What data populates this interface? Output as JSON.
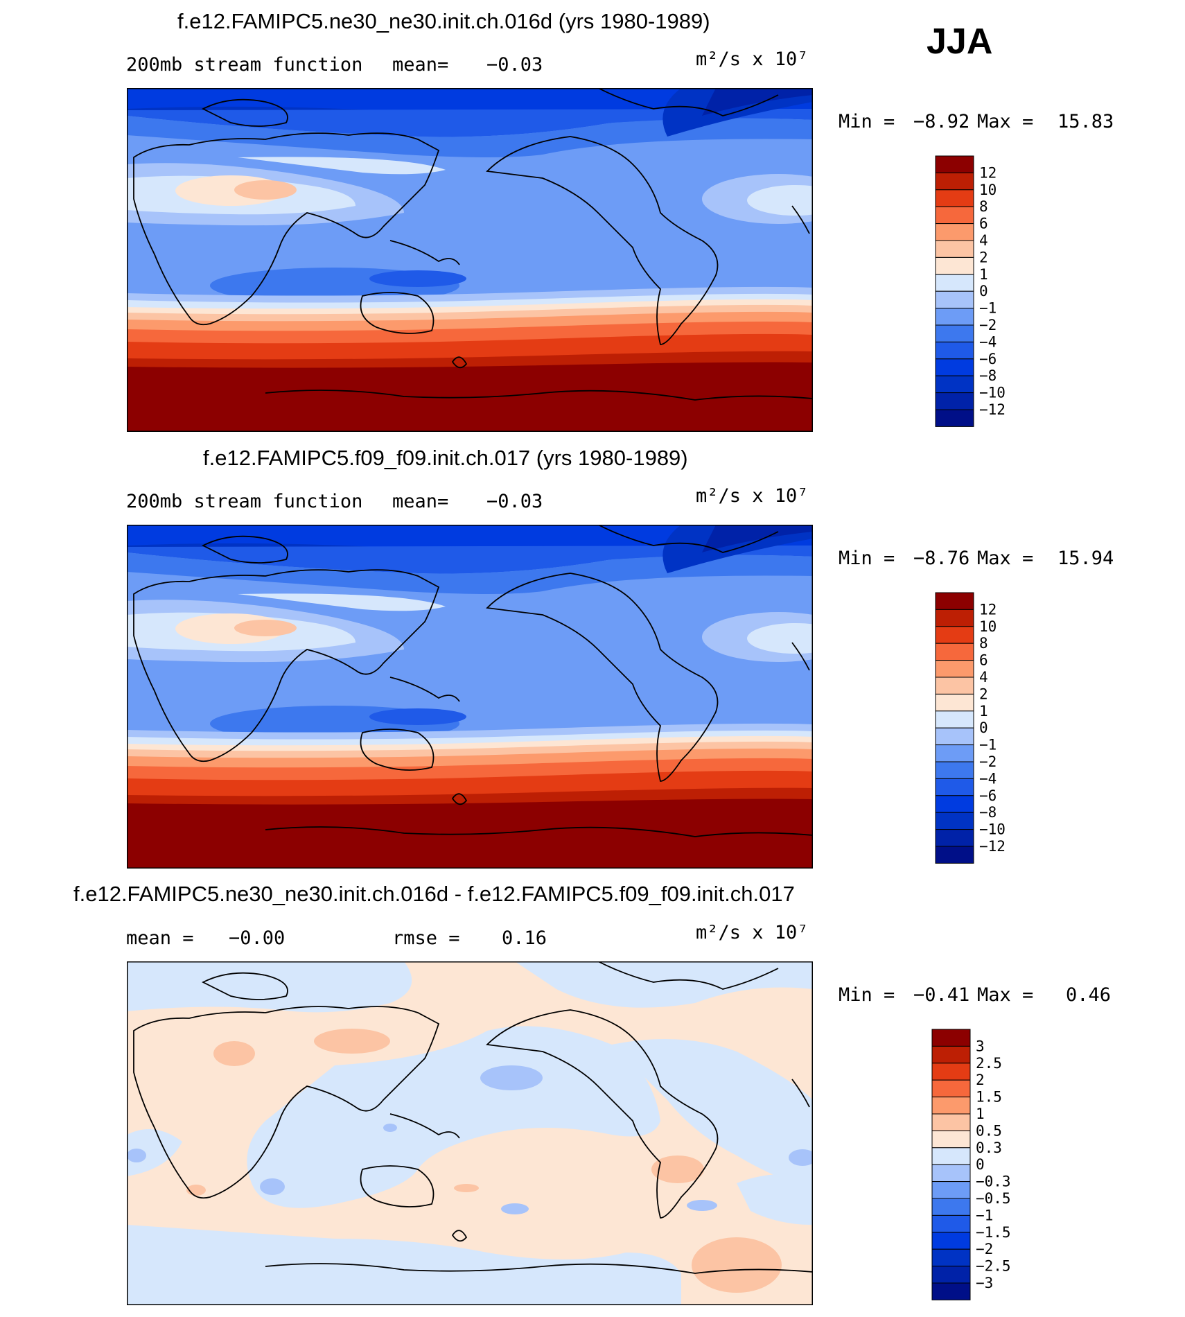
{
  "season": "JJA",
  "panels": [
    {
      "title": "f.e12.FAMIPC5.ne30_ne30.init.ch.016d (yrs 1980-1989)",
      "left_label": "200mb stream function",
      "mean_label": "mean=",
      "mean_value": "−0.03",
      "units": "m²/s x 10⁷",
      "min_label": "Min =",
      "min_value": "−8.92",
      "max_label": "Max =",
      "max_value": "15.83",
      "colorbar_labels": [
        "12",
        "10",
        "8",
        "6",
        "4",
        "2",
        "1",
        "0",
        "−1",
        "−2",
        "−4",
        "−6",
        "−8",
        "−10",
        "−12"
      ]
    },
    {
      "title": "f.e12.FAMIPC5.f09_f09.init.ch.017 (yrs 1980-1989)",
      "left_label": "200mb stream function",
      "mean_label": "mean=",
      "mean_value": "−0.03",
      "units": "m²/s x 10⁷",
      "min_label": "Min =",
      "min_value": "−8.76",
      "max_label": "Max =",
      "max_value": "15.94",
      "colorbar_labels": [
        "12",
        "10",
        "8",
        "6",
        "4",
        "2",
        "1",
        "0",
        "−1",
        "−2",
        "−4",
        "−6",
        "−8",
        "−10",
        "−12"
      ]
    },
    {
      "title": "f.e12.FAMIPC5.ne30_ne30.init.ch.016d - f.e12.FAMIPC5.f09_f09.init.ch.017",
      "mean_label": "mean =",
      "mean_value": "−0.00",
      "rmse_label": "rmse =",
      "rmse_value": "0.16",
      "units": "m²/s x 10⁷",
      "min_label": "Min =",
      "min_value": "−0.41",
      "max_label": "Max =",
      "max_value": "0.46",
      "colorbar_labels": [
        "3",
        "2.5",
        "2",
        "1.5",
        "1",
        "0.5",
        "0.3",
        "0",
        "−0.3",
        "−0.5",
        "−1",
        "−1.5",
        "−2",
        "−2.5",
        "−3"
      ]
    }
  ],
  "chart_data": [
    {
      "type": "heatmap",
      "title": "f.e12.FAMIPC5.ne30_ne30.init.ch.016d (yrs 1980-1989)",
      "variable": "200mb stream function",
      "units": "m²/s x 10⁷",
      "mean": -0.03,
      "min": -8.92,
      "max": 15.83,
      "contour_levels": [
        -12,
        -10,
        -8,
        -6,
        -4,
        -2,
        -1,
        0,
        1,
        2,
        4,
        6,
        8,
        10,
        12
      ],
      "colors": [
        "#000f88",
        "#0022a8",
        "#0033c4",
        "#003be0",
        "#1f5ae8",
        "#3d78ee",
        "#6d9cf6",
        "#a7c3fa",
        "#d6e7fc",
        "#fde6d4",
        "#fcc4a4",
        "#fc9a6c",
        "#f6683c",
        "#e43c14",
        "#bd1f04",
        "#8c0000"
      ]
    },
    {
      "type": "heatmap",
      "title": "f.e12.FAMIPC5.f09_f09.init.ch.017 (yrs 1980-1989)",
      "variable": "200mb stream function",
      "units": "m²/s x 10⁷",
      "mean": -0.03,
      "min": -8.76,
      "max": 15.94,
      "contour_levels": [
        -12,
        -10,
        -8,
        -6,
        -4,
        -2,
        -1,
        0,
        1,
        2,
        4,
        6,
        8,
        10,
        12
      ],
      "colors": [
        "#000f88",
        "#0022a8",
        "#0033c4",
        "#003be0",
        "#1f5ae8",
        "#3d78ee",
        "#6d9cf6",
        "#a7c3fa",
        "#d6e7fc",
        "#fde6d4",
        "#fcc4a4",
        "#fc9a6c",
        "#f6683c",
        "#e43c14",
        "#bd1f04",
        "#8c0000"
      ]
    },
    {
      "type": "heatmap",
      "title": "f.e12.FAMIPC5.ne30_ne30.init.ch.016d - f.e12.FAMIPC5.f09_f09.init.ch.017",
      "units": "m²/s x 10⁷",
      "mean": -0.0,
      "rmse": 0.16,
      "min": -0.41,
      "max": 0.46,
      "contour_levels": [
        -3,
        -2.5,
        -2,
        -1.5,
        -1,
        -0.5,
        -0.3,
        0,
        0.3,
        0.5,
        1,
        1.5,
        2,
        2.5,
        3
      ],
      "colors": [
        "#000f88",
        "#0022a8",
        "#0033c4",
        "#003be0",
        "#1f5ae8",
        "#3d78ee",
        "#6d9cf6",
        "#a7c3fa",
        "#d6e7fc",
        "#fde6d4",
        "#fcc4a4",
        "#fc9a6c",
        "#f6683c",
        "#e43c14",
        "#bd1f04",
        "#8c0000"
      ]
    }
  ]
}
